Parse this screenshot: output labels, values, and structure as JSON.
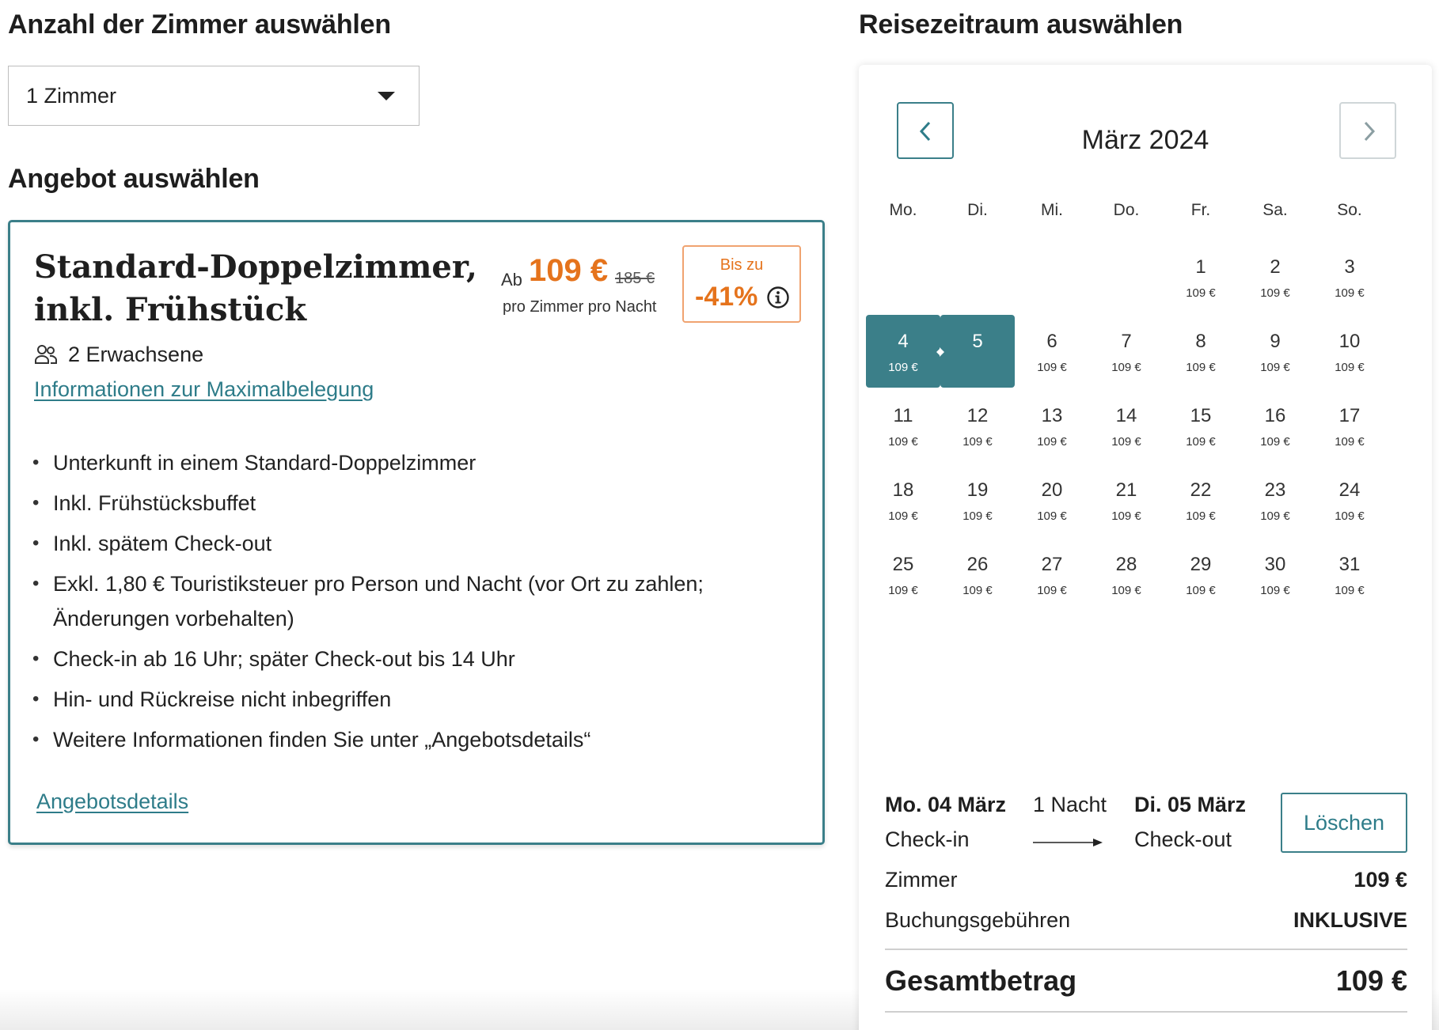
{
  "rooms": {
    "heading": "Anzahl der Zimmer auswählen",
    "selected": "1 Zimmer"
  },
  "offer_section": {
    "heading": "Angebot auswählen"
  },
  "offer": {
    "title_line1": "Standard-Doppelzimmer,",
    "title_line2": "inkl. Frühstück",
    "price_prefix": "Ab",
    "price": "109 €",
    "old_price": "185 €",
    "price_unit": "pro Zimmer pro Nacht",
    "discount_label": "Bis zu",
    "discount_value": "-41%",
    "guests": "2 Erwachsene",
    "max_occupancy_link": "Informationen zur Maximalbelegung",
    "features": [
      "Unterkunft in einem Standard-Doppelzimmer",
      "Inkl. Frühstücksbuffet",
      "Inkl. spätem Check-out",
      "Exkl. 1,80 € Touristiksteuer pro Person und Nacht (vor Ort zu zahlen; Änderungen vorbehalten)",
      "Check-in ab 16 Uhr; später Check-out bis 14 Uhr",
      "Hin- und Rückreise nicht inbegriffen",
      "Weitere Informationen finden Sie unter „Angebotsdetails“"
    ],
    "details_link": "Angebotsdetails"
  },
  "calendar": {
    "heading": "Reisezeitraum auswählen",
    "month": "März 2024",
    "weekdays": [
      "Mo.",
      "Di.",
      "Mi.",
      "Do.",
      "Fr.",
      "Sa.",
      "So."
    ],
    "first_weekday_index": 4,
    "selected_start": 4,
    "selected_end": 5,
    "days": [
      {
        "day": "1",
        "price": "109 €"
      },
      {
        "day": "2",
        "price": "109 €"
      },
      {
        "day": "3",
        "price": "109 €"
      },
      {
        "day": "4",
        "price": "109 €"
      },
      {
        "day": "5",
        "price": ""
      },
      {
        "day": "6",
        "price": "109 €"
      },
      {
        "day": "7",
        "price": "109 €"
      },
      {
        "day": "8",
        "price": "109 €"
      },
      {
        "day": "9",
        "price": "109 €"
      },
      {
        "day": "10",
        "price": "109 €"
      },
      {
        "day": "11",
        "price": "109 €"
      },
      {
        "day": "12",
        "price": "109 €"
      },
      {
        "day": "13",
        "price": "109 €"
      },
      {
        "day": "14",
        "price": "109 €"
      },
      {
        "day": "15",
        "price": "109 €"
      },
      {
        "day": "16",
        "price": "109 €"
      },
      {
        "day": "17",
        "price": "109 €"
      },
      {
        "day": "18",
        "price": "109 €"
      },
      {
        "day": "19",
        "price": "109 €"
      },
      {
        "day": "20",
        "price": "109 €"
      },
      {
        "day": "21",
        "price": "109 €"
      },
      {
        "day": "22",
        "price": "109 €"
      },
      {
        "day": "23",
        "price": "109 €"
      },
      {
        "day": "24",
        "price": "109 €"
      },
      {
        "day": "25",
        "price": "109 €"
      },
      {
        "day": "26",
        "price": "109 €"
      },
      {
        "day": "27",
        "price": "109 €"
      },
      {
        "day": "28",
        "price": "109 €"
      },
      {
        "day": "29",
        "price": "109 €"
      },
      {
        "day": "30",
        "price": "109 €"
      },
      {
        "day": "31",
        "price": "109 €"
      }
    ]
  },
  "summary": {
    "checkin_date": "Mo. 04 März",
    "checkin_label": "Check-in",
    "nights": "1 Nacht",
    "checkout_date": "Di. 05 März",
    "checkout_label": "Check-out",
    "clear_button": "Löschen",
    "room_label": "Zimmer",
    "room_price": "109 €",
    "fee_label": "Buchungsgebühren",
    "fee_value": "INKLUSIVE",
    "total_label": "Gesamtbetrag",
    "total_value": "109 €"
  },
  "colors": {
    "accent_teal": "#3b7f89",
    "link_teal": "#2e7c89",
    "price_orange": "#e5731c"
  },
  "icons": [
    "chevron-down-icon",
    "guests-icon",
    "info-icon",
    "chevron-left-icon",
    "chevron-right-icon",
    "arrow-right-icon"
  ]
}
